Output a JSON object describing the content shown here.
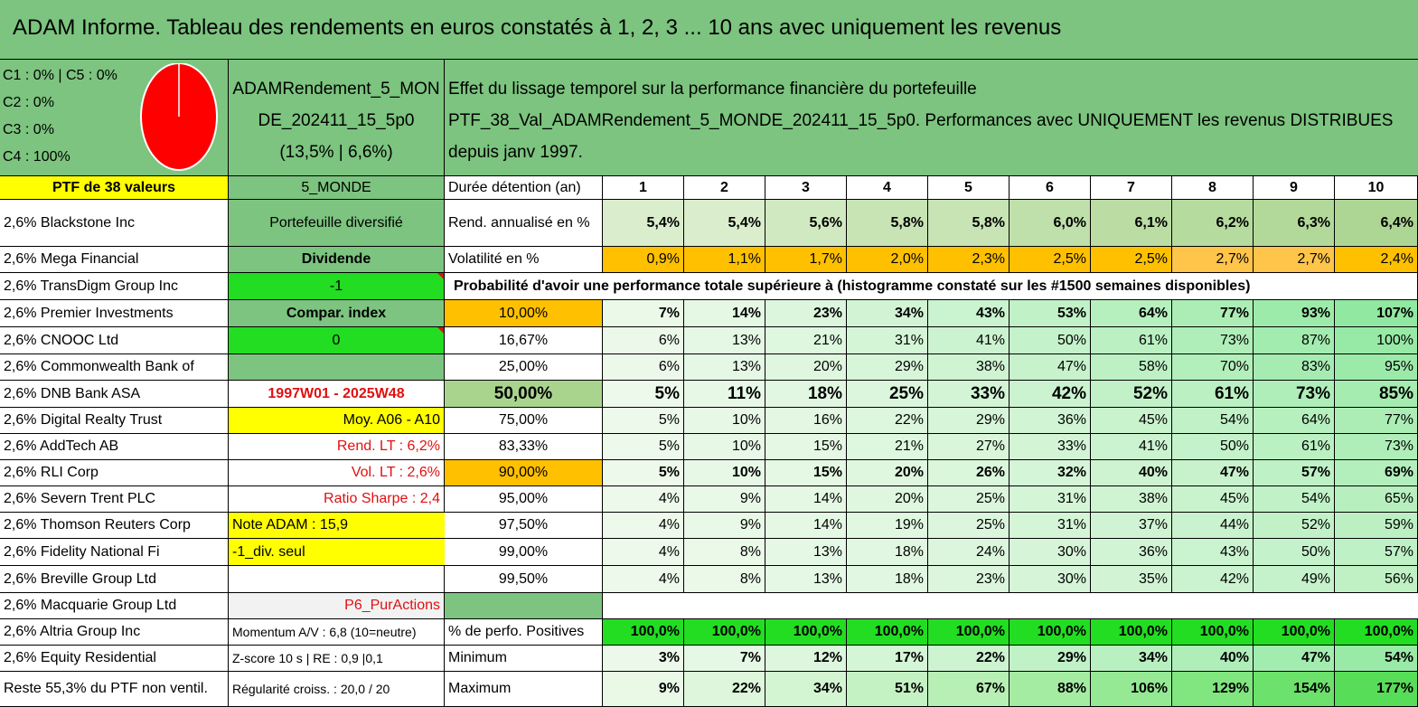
{
  "title": "ADAM Informe. Tableau des rendements en euros constatés à 1, 2, 3 ... 10 ans avec uniquement les revenus",
  "composition": {
    "lines": [
      "C1 : 0% | C5 : 0%",
      "C2 : 0%",
      "C3 : 0%",
      "C4 : 100%"
    ],
    "pie_share_c4": 1.0,
    "pie_color": "#ff0000"
  },
  "portfolio_name": [
    "ADAMRendement_5_MON",
    "DE_202411_15_5p0",
    "(13,5% | 6,6%)"
  ],
  "description": "Effet du lissage temporel sur la performance financière du portefeuille PTF_38_Val_ADAMRendement_5_MONDE_202411_15_5p0. Performances avec UNIQUEMENT les revenus DISTRIBUES depuis janv 1997.",
  "header": {
    "ptf": "PTF de 38 valeurs",
    "universe": "5_MONDE",
    "duration_label": "Durée détention (an)",
    "years": [
      "1",
      "2",
      "3",
      "4",
      "5",
      "6",
      "7",
      "8",
      "9",
      "10"
    ]
  },
  "holdings": [
    "2,6% Blackstone Inc",
    "2,6% Mega Financial",
    "2,6% TransDigm Group Inc",
    "2,6% Premier Investments",
    "2,6% CNOOC Ltd",
    "2,6% Commonwealth Bank of",
    "2,6% DNB Bank ASA",
    "2,6% Digital Realty Trust",
    "2,6% AddTech AB",
    "2,6% RLI Corp",
    "2,6% Severn Trent PLC",
    "2,6% Thomson Reuters Corp",
    "2,6% Fidelity National Fi",
    "2,6% Breville Group Ltd",
    "2,6% Macquarie Group Ltd",
    "2,6% Altria Group Inc",
    "2,6% Equity Residential",
    "Reste 55,3% du PTF non ventil."
  ],
  "info": [
    "Portefeuille diversifié",
    "Dividende",
    "-1",
    "Compar. index",
    "0",
    "",
    "1997W01 - 2025W48",
    "Moy. A06 - A10",
    "Rend. LT : 6,2%",
    "Vol. LT : 2,6%",
    "Ratio Sharpe : 2,4",
    "Note ADAM : 15,9",
    "-1_div. seul",
    "",
    "P6_PurActions",
    "Momentum A/V : 6,8 (10=neutre)",
    "Z-score 10 s | RE : 0,9 |0,1",
    "Régularité croiss. : 20,0 / 20"
  ],
  "rend_label": "Rend. annualisé en %",
  "rend": [
    "5,4%",
    "5,4%",
    "5,6%",
    "5,8%",
    "5,8%",
    "6,0%",
    "6,1%",
    "6,2%",
    "6,3%",
    "6,4%"
  ],
  "vol_label": "Volatilité en %",
  "vol": [
    "0,9%",
    "1,1%",
    "1,7%",
    "2,0%",
    "2,3%",
    "2,5%",
    "2,5%",
    "2,7%",
    "2,7%",
    "2,4%"
  ],
  "prob_title": "Probabilité d'avoir une performance totale supérieure à (histogramme constaté sur les #1500 semaines disponibles)",
  "prob_rows": [
    {
      "p": "10,00%",
      "v": [
        "7%",
        "14%",
        "23%",
        "34%",
        "43%",
        "53%",
        "64%",
        "77%",
        "93%",
        "107%"
      ]
    },
    {
      "p": "16,67%",
      "v": [
        "6%",
        "13%",
        "21%",
        "31%",
        "41%",
        "50%",
        "61%",
        "73%",
        "87%",
        "100%"
      ]
    },
    {
      "p": "25,00%",
      "v": [
        "6%",
        "13%",
        "20%",
        "29%",
        "38%",
        "47%",
        "58%",
        "70%",
        "83%",
        "95%"
      ]
    },
    {
      "p": "50,00%",
      "v": [
        "5%",
        "11%",
        "18%",
        "25%",
        "33%",
        "42%",
        "52%",
        "61%",
        "73%",
        "85%"
      ]
    },
    {
      "p": "75,00%",
      "v": [
        "5%",
        "10%",
        "16%",
        "22%",
        "29%",
        "36%",
        "45%",
        "54%",
        "64%",
        "77%"
      ]
    },
    {
      "p": "83,33%",
      "v": [
        "5%",
        "10%",
        "15%",
        "21%",
        "27%",
        "33%",
        "41%",
        "50%",
        "61%",
        "73%"
      ]
    },
    {
      "p": "90,00%",
      "v": [
        "5%",
        "10%",
        "15%",
        "20%",
        "26%",
        "32%",
        "40%",
        "47%",
        "57%",
        "69%"
      ]
    },
    {
      "p": "95,00%",
      "v": [
        "4%",
        "9%",
        "14%",
        "20%",
        "25%",
        "31%",
        "38%",
        "45%",
        "54%",
        "65%"
      ]
    },
    {
      "p": "97,50%",
      "v": [
        "4%",
        "9%",
        "14%",
        "19%",
        "25%",
        "31%",
        "37%",
        "44%",
        "52%",
        "59%"
      ]
    },
    {
      "p": "99,00%",
      "v": [
        "4%",
        "8%",
        "13%",
        "18%",
        "24%",
        "30%",
        "36%",
        "43%",
        "50%",
        "57%"
      ]
    },
    {
      "p": "99,50%",
      "v": [
        "4%",
        "8%",
        "13%",
        "18%",
        "23%",
        "30%",
        "35%",
        "42%",
        "49%",
        "56%"
      ]
    }
  ],
  "stats": [
    {
      "label": "% de perfo. Positives",
      "v": [
        "100,0%",
        "100,0%",
        "100,0%",
        "100,0%",
        "100,0%",
        "100,0%",
        "100,0%",
        "100,0%",
        "100,0%",
        "100,0%"
      ]
    },
    {
      "label": "Minimum",
      "v": [
        "3%",
        "7%",
        "12%",
        "17%",
        "22%",
        "29%",
        "34%",
        "40%",
        "47%",
        "54%"
      ]
    },
    {
      "label": "Maximum",
      "v": [
        "9%",
        "22%",
        "34%",
        "51%",
        "67%",
        "88%",
        "106%",
        "129%",
        "154%",
        "177%"
      ]
    }
  ],
  "colors": {
    "header_green": "#7cc47f",
    "yellow": "#ffff00",
    "bright_green": "#22dd22",
    "orange": "#ffc000",
    "red_text": "#e01010"
  }
}
